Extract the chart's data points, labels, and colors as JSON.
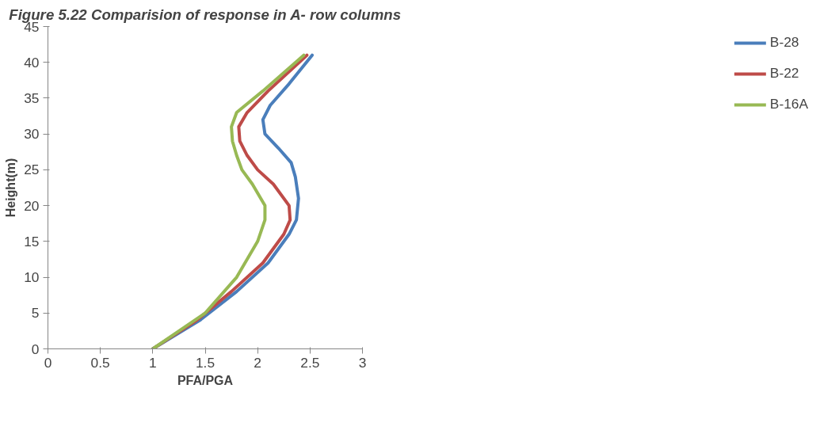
{
  "chart_data": {
    "type": "line",
    "title": "Figure 5.22 Comparision of response in A- row columns",
    "xlabel": "PFA/PGA",
    "ylabel": "Height(m)",
    "xlim": [
      0,
      3
    ],
    "xticks": [
      0,
      0.5,
      1,
      1.5,
      2,
      2.5,
      3
    ],
    "ylim": [
      0,
      45
    ],
    "yticks": [
      0,
      5,
      10,
      15,
      20,
      25,
      30,
      35,
      40,
      45
    ],
    "grid": false,
    "legend": "right",
    "marker": "none",
    "line_style": "solid",
    "series": [
      {
        "name": "B-28",
        "color": "#4a7ebb",
        "x": [
          1,
          1.45,
          1.8,
          2.1,
          2.3,
          2.37,
          2.39,
          2.36,
          2.32,
          2.2,
          2.07,
          2.05,
          2.12,
          2.3,
          2.52
        ],
        "values": [
          0,
          4,
          8,
          12,
          16,
          18,
          21,
          24,
          26,
          28,
          30,
          32,
          34,
          37,
          41
        ]
      },
      {
        "name": "B-22",
        "color": "#be4b48",
        "x": [
          1,
          1.42,
          1.75,
          2.05,
          2.25,
          2.31,
          2.3,
          2.15,
          2.0,
          1.9,
          1.83,
          1.82,
          1.9,
          2.1,
          2.47
        ],
        "values": [
          0,
          4,
          8,
          12,
          16,
          18,
          20,
          23,
          25,
          27,
          29,
          31,
          33,
          36,
          41
        ]
      },
      {
        "name": "B-16A",
        "color": "#98b954",
        "x": [
          1,
          1.5,
          1.8,
          2.0,
          2.07,
          2.07,
          1.95,
          1.85,
          1.8,
          1.76,
          1.75,
          1.8,
          2.05,
          2.44
        ],
        "values": [
          0,
          5,
          10,
          15,
          18,
          20,
          23,
          25,
          27,
          29,
          31,
          33,
          36,
          41
        ]
      }
    ]
  }
}
